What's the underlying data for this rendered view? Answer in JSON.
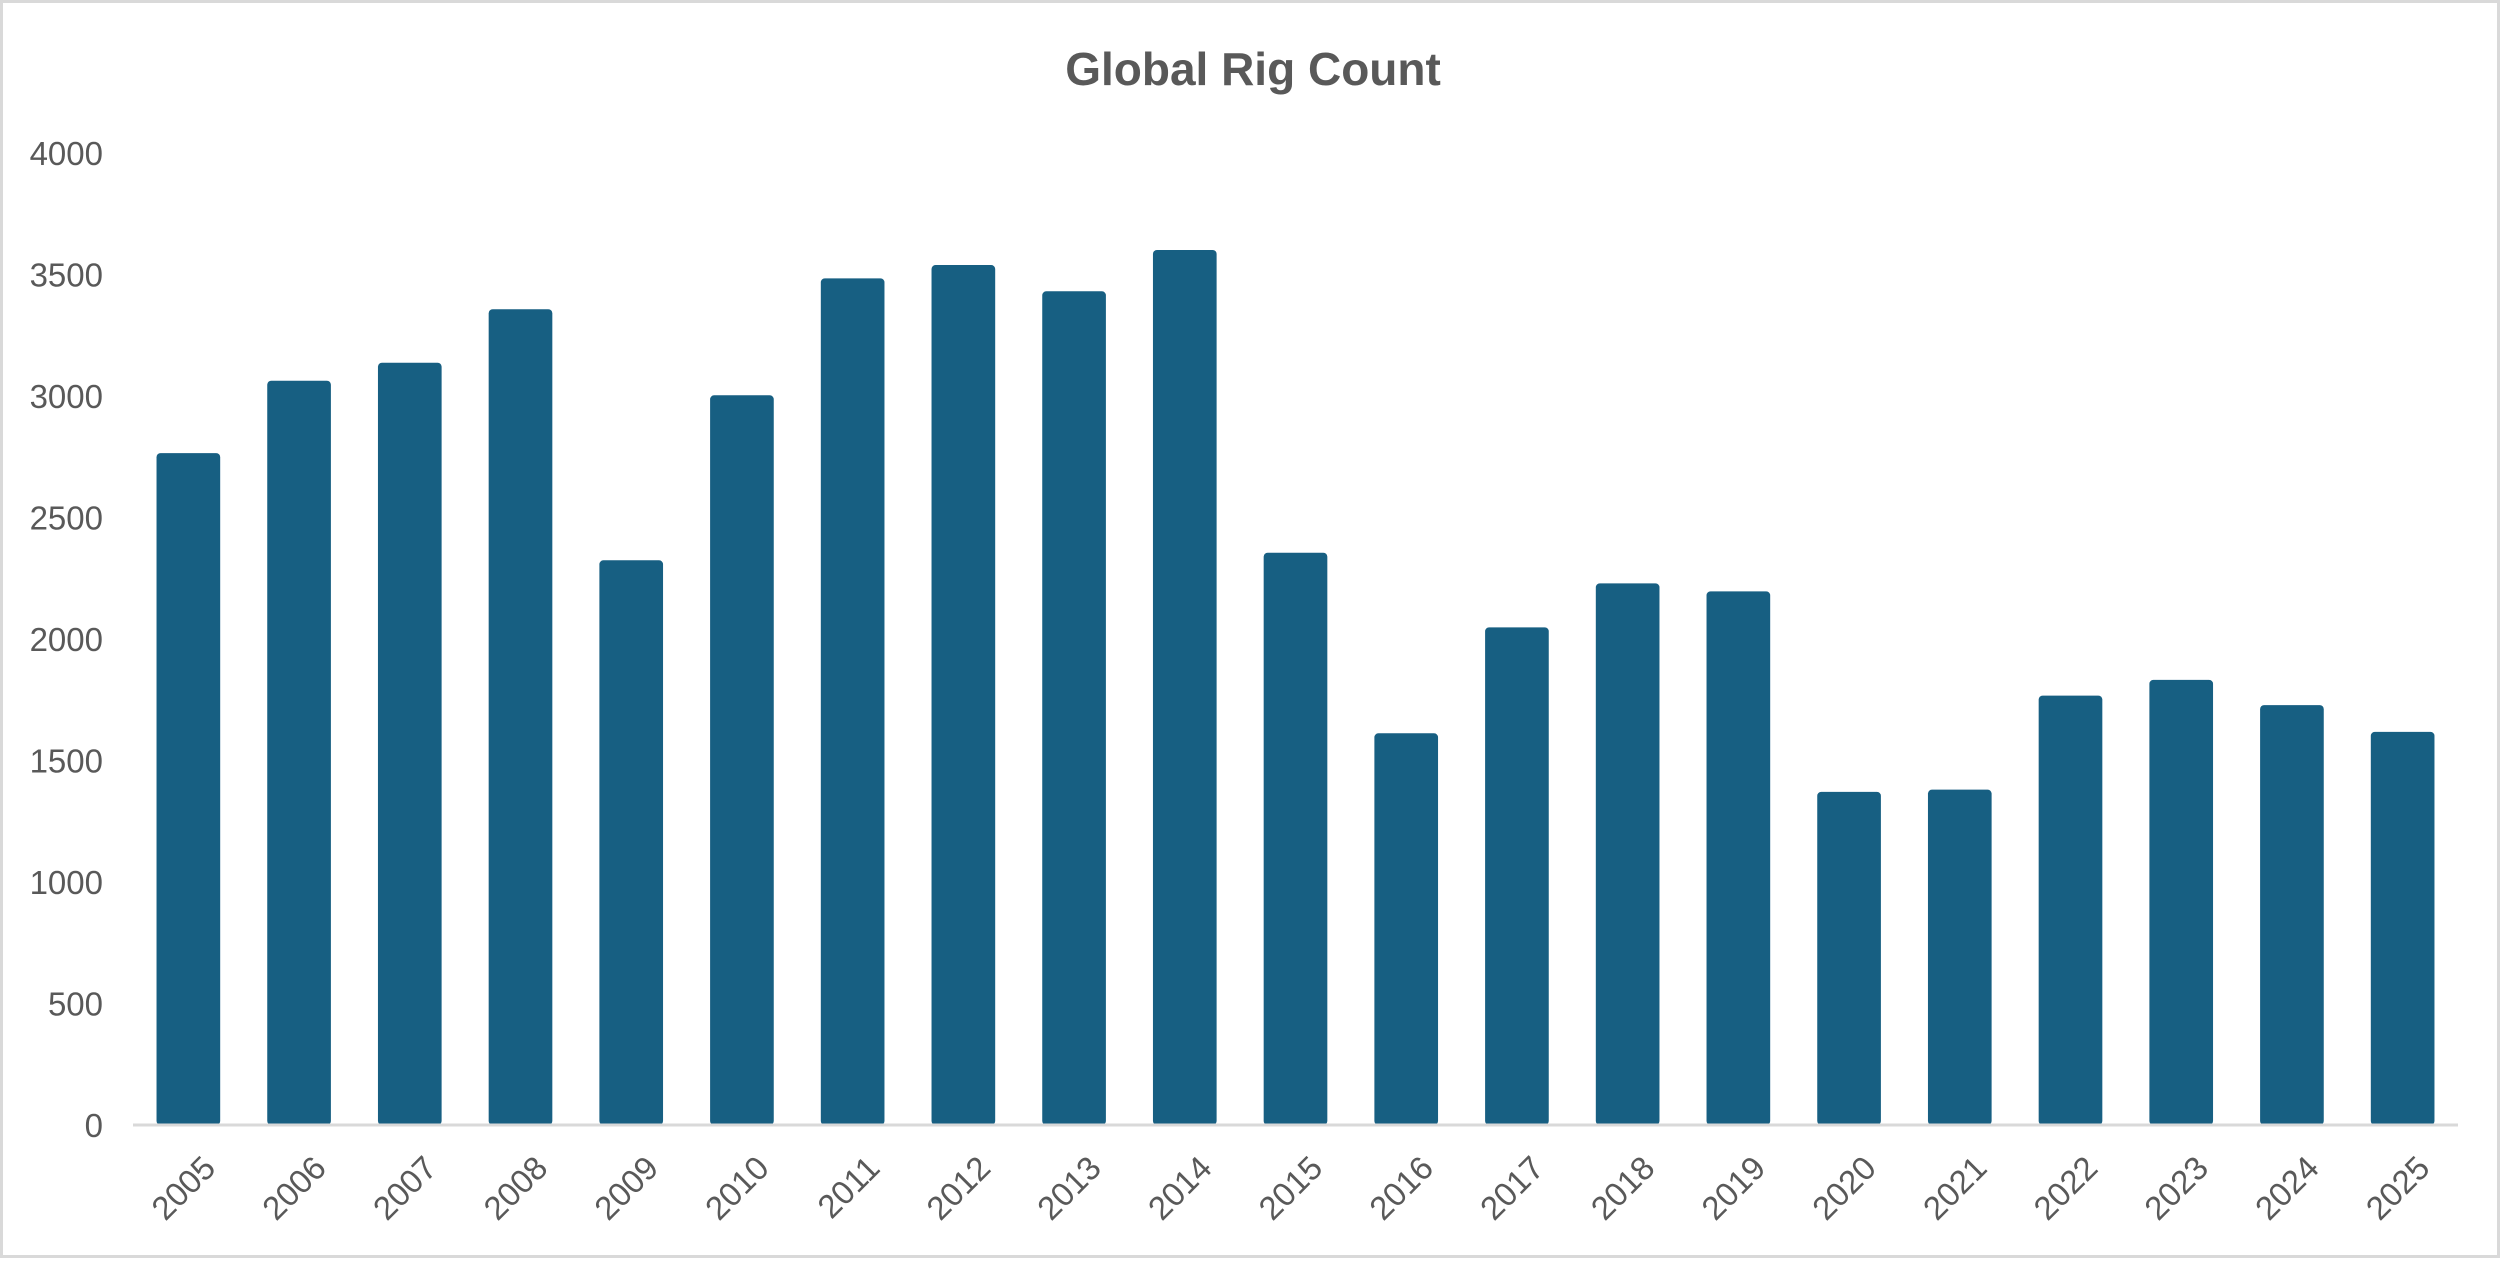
{
  "chart_data": {
    "type": "bar",
    "title": "Global Rig Count",
    "xlabel": "",
    "ylabel": "",
    "categories": [
      "2005",
      "2006",
      "2007",
      "2008",
      "2009",
      "2010",
      "2011",
      "2012",
      "2013",
      "2014",
      "2015",
      "2016",
      "2017",
      "2018",
      "2019",
      "2020",
      "2021",
      "2022",
      "2023",
      "2024",
      "2025"
    ],
    "values": [
      2765,
      3063,
      3137,
      3357,
      2324,
      3003,
      3484,
      3539,
      3431,
      3601,
      2355,
      1612,
      2048,
      2229,
      2196,
      1371,
      1380,
      1767,
      1832,
      1728,
      1618
    ],
    "ylim": [
      0,
      4000
    ],
    "yticks": [
      0,
      500,
      1000,
      1500,
      2000,
      2500,
      3000,
      3500,
      4000
    ],
    "grid": false,
    "legend": "none",
    "colors": {
      "bar": "#175f82",
      "axis": "#d9d9d9",
      "text": "#595959",
      "border": "#d9d9d9"
    }
  }
}
